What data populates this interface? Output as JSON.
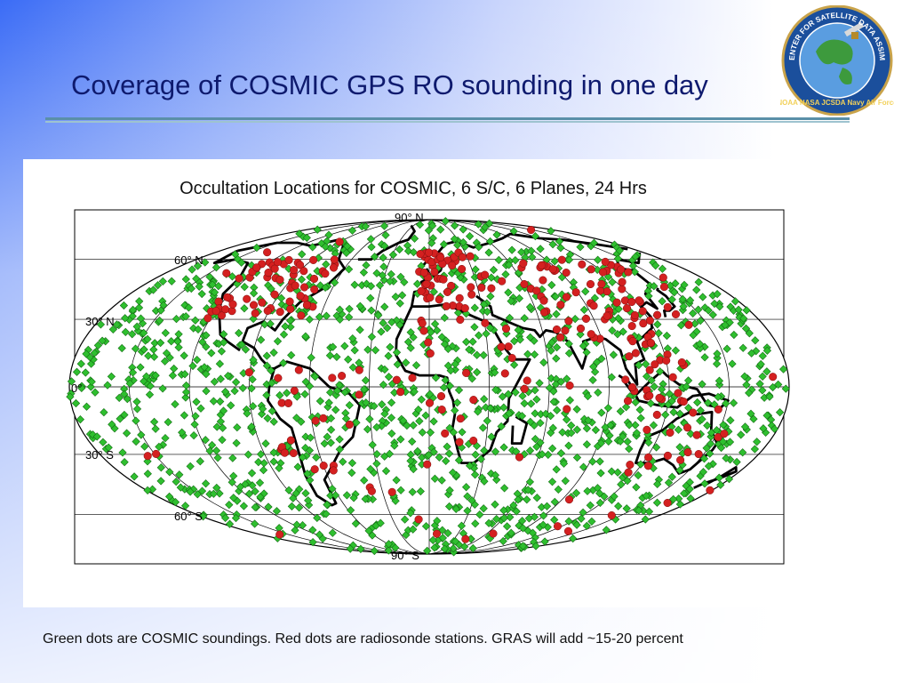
{
  "slide": {
    "title": "Coverage of COSMIC GPS RO sounding in one day",
    "caption": "Green dots are COSMIC soundings. Red dots are radiosonde stations. GRAS will add ~15-20 percent"
  },
  "logo": {
    "text": "JOINT CENTER FOR SATELLITE DATA ASSIMILATION",
    "bottom_text": "NOAA NASA JCSDA Navy Air Force"
  },
  "figure": {
    "title": "Occultation Locations for COSMIC, 6 S/C, 6 Planes, 24 Hrs",
    "projection": "Mollweide",
    "lat_labels": [
      "90° N",
      "60° N",
      "30° N",
      "0°",
      "30° S",
      "60° S",
      "90° S"
    ],
    "latitudes": [
      90,
      60,
      30,
      0,
      -30,
      -60,
      -90
    ],
    "meridians": [
      -150,
      -120,
      -90,
      -60,
      -30,
      0,
      30,
      60,
      90,
      120,
      150
    ],
    "green_marker": "diamond",
    "red_marker": "circle",
    "colors": {
      "cosmic": "#2fbf2f",
      "radiosonde": "#d42020",
      "coast": "#000000",
      "grid": "#000000"
    }
  }
}
